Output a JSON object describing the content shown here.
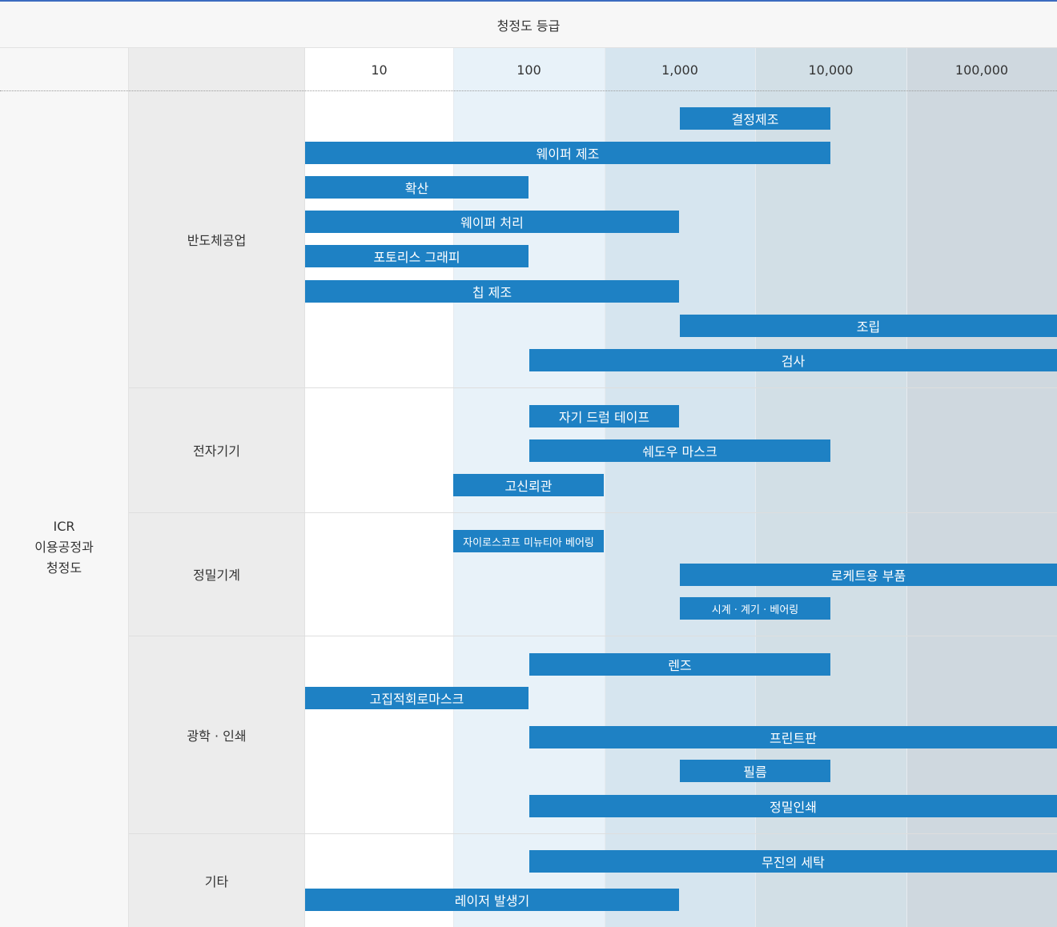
{
  "header": {
    "title": "청정도 등급"
  },
  "side_label_lines": [
    "ICR",
    "이용공정과",
    "청정도"
  ],
  "grades": [
    "10",
    "100",
    "1,000",
    "10,000",
    "100,000"
  ],
  "colors": {
    "bar": "#1e81c4",
    "grade_backgrounds": [
      "#ffffff",
      "#e8f2f9",
      "#d6e5ef",
      "#d2dfe6",
      "#cfd8df"
    ]
  },
  "groups": [
    {
      "label": "반도체공업",
      "bars": [
        {
          "label": "결정제조",
          "from_grade": "1,000",
          "to_grade": "10,000"
        },
        {
          "label": "웨이퍼 제조",
          "from_grade": "10",
          "to_grade": "10,000"
        },
        {
          "label": "확산",
          "from_grade": "10",
          "to_grade": "100"
        },
        {
          "label": "웨이퍼 처리",
          "from_grade": "10",
          "to_grade": "1,000"
        },
        {
          "label": "포토리스 그래피",
          "from_grade": "10",
          "to_grade": "100"
        },
        {
          "label": "칩 제조",
          "from_grade": "10",
          "to_grade": "1,000"
        },
        {
          "label": "조립",
          "from_grade": "1,000",
          "to_grade": "100,000"
        },
        {
          "label": "검사",
          "from_grade": "100",
          "to_grade": "100,000"
        }
      ]
    },
    {
      "label": "전자기기",
      "bars": [
        {
          "label": "자기 드럼 테이프",
          "from_grade": "100",
          "to_grade": "1,000"
        },
        {
          "label": "쉐도우 마스크",
          "from_grade": "100",
          "to_grade": "10,000"
        },
        {
          "label": "고신뢰관",
          "from_grade": "100",
          "to_grade": "100"
        }
      ]
    },
    {
      "label": "정밀기계",
      "bars": [
        {
          "label": "자이로스코프 미뉴티아 베어링",
          "from_grade": "100",
          "to_grade": "100"
        },
        {
          "label": "로케트용 부품",
          "from_grade": "1,000",
          "to_grade": "100,000"
        },
        {
          "label": "시계 · 계기 · 베어링",
          "from_grade": "1,000",
          "to_grade": "10,000"
        }
      ]
    },
    {
      "label": "광학 · 인쇄",
      "bars": [
        {
          "label": "렌즈",
          "from_grade": "100",
          "to_grade": "10,000"
        },
        {
          "label": "고집적회로마스크",
          "from_grade": "10",
          "to_grade": "100"
        },
        {
          "label": "프린트판",
          "from_grade": "100",
          "to_grade": "100,000"
        },
        {
          "label": "필름",
          "from_grade": "1,000",
          "to_grade": "10,000"
        },
        {
          "label": "정밀인쇄",
          "from_grade": "100",
          "to_grade": "100,000"
        }
      ]
    },
    {
      "label": "기타",
      "bars": [
        {
          "label": "무진의 세탁",
          "from_grade": "100",
          "to_grade": "100,000"
        },
        {
          "label": "레이저 발생기",
          "from_grade": "10",
          "to_grade": "1,000"
        }
      ]
    }
  ]
}
